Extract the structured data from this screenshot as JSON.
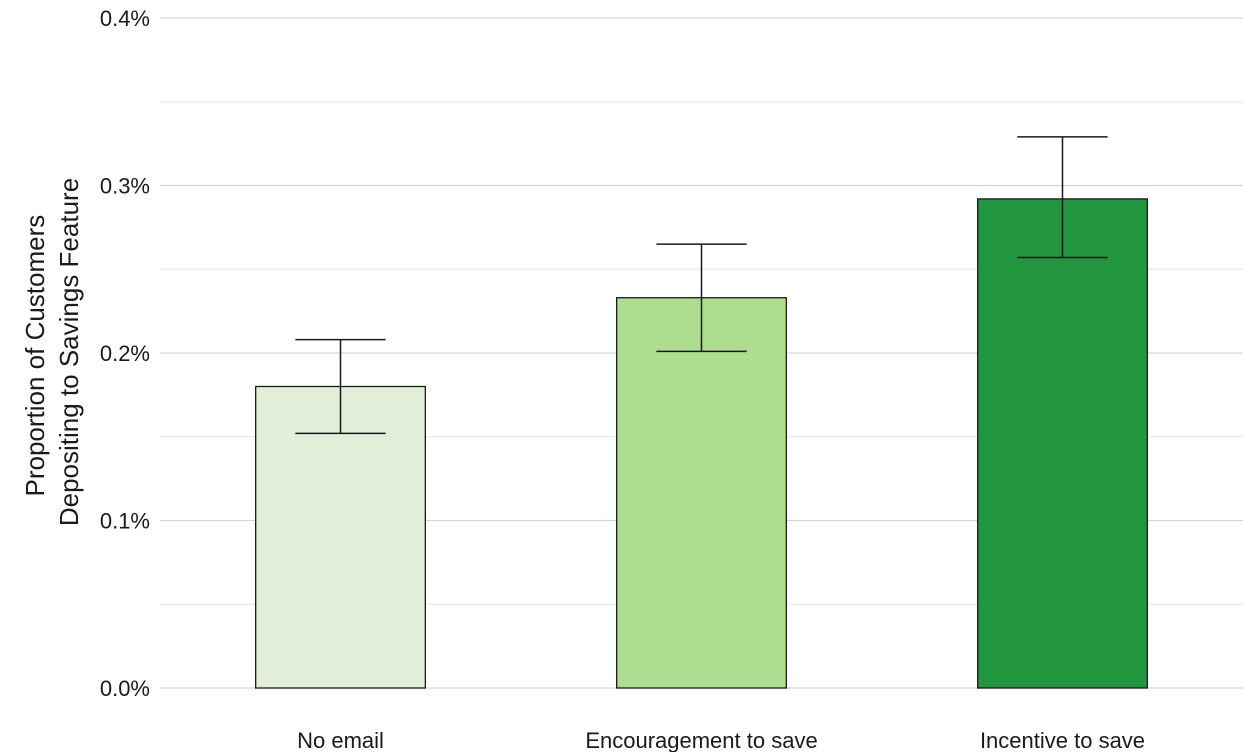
{
  "chart_data": {
    "type": "bar",
    "title": "",
    "xlabel": "",
    "ylabel_lines": [
      "Proportion of Customers",
      "Depositing to Savings Feature"
    ],
    "ylim": [
      0,
      0.4
    ],
    "y_ticks": [
      0.0,
      0.1,
      0.2,
      0.3,
      0.4
    ],
    "y_tick_labels": [
      "0.0%",
      "0.1%",
      "0.2%",
      "0.3%",
      "0.4%"
    ],
    "y_minor_ticks": [
      0.05,
      0.15,
      0.25,
      0.35
    ],
    "grid": true,
    "legend": "none",
    "categories": [
      "No email",
      "Encouragement to save",
      "Incentive to save"
    ],
    "values": [
      0.18,
      0.233,
      0.292
    ],
    "error_low": [
      0.152,
      0.201,
      0.257
    ],
    "error_high": [
      0.208,
      0.265,
      0.329
    ],
    "colors": [
      "#e1eed8",
      "#addd8e",
      "#22963f"
    ]
  }
}
